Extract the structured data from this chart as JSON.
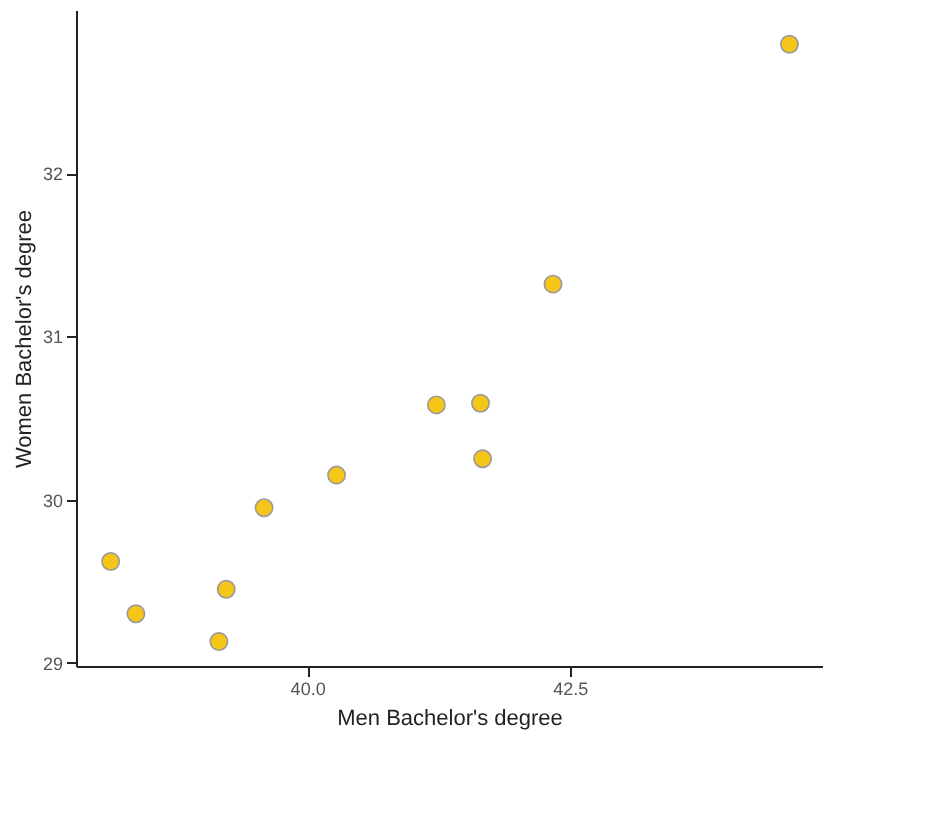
{
  "chart_data": {
    "type": "scatter",
    "xlabel": "Men Bachelor's degree",
    "ylabel": "Women Bachelor's degree",
    "x": [
      38.13,
      38.37,
      39.16,
      39.23,
      39.59,
      40.28,
      41.23,
      41.65,
      41.67,
      42.34,
      44.59
    ],
    "series": [
      {
        "color": "#f5c518",
        "values": [
          29.62,
          29.3,
          29.13,
          29.45,
          29.95,
          30.15,
          30.58,
          30.59,
          30.25,
          31.32,
          32.79
        ]
      }
    ],
    "xlim": [
      37.8,
      44.9
    ],
    "ylim": [
      28.98,
      33.0
    ],
    "xticks": [
      {
        "value": 40,
        "label": "40.0"
      },
      {
        "value": 42.5,
        "label": "42.5"
      }
    ],
    "yticks": [
      29,
      30,
      31,
      32
    ],
    "grid": false,
    "legend": false,
    "marker": "circle"
  }
}
